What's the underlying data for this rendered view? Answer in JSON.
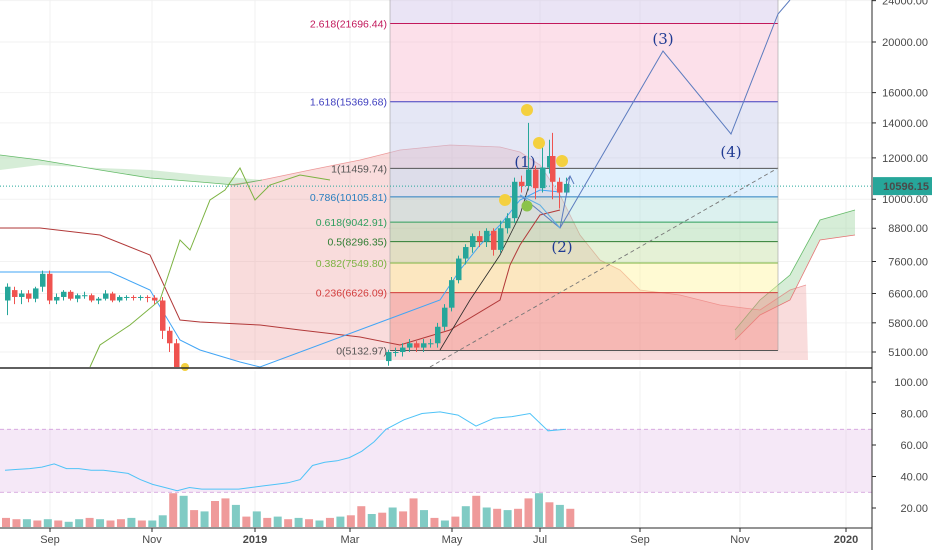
{
  "chart_data": {
    "type": "candlestick",
    "price_axis": {
      "scale": "log",
      "ticks": [
        "24000.00",
        "20000.00",
        "16000.00",
        "14000.00",
        "12000.00",
        "10000.00",
        "8800.00",
        "7600.00",
        "6600.00",
        "5800.00",
        "5100.00"
      ],
      "tick_values": [
        24000,
        20000,
        16000,
        14000,
        12000,
        10000,
        8800,
        7600,
        6600,
        5800,
        5100
      ],
      "current_price": "10596.15",
      "current_value": 10596.15
    },
    "time_axis": {
      "labels": [
        "Sep",
        "Nov",
        "2019",
        "Mar",
        "May",
        "Jul",
        "Sep",
        "Nov",
        "2020"
      ]
    },
    "fib_levels": [
      {
        "label": "0(5132.97)",
        "value": 5132.97,
        "color": "#555555"
      },
      {
        "label": "0.236(6626.09)",
        "value": 6626.09,
        "color": "#d23c3c"
      },
      {
        "label": "0.382(7549.80)",
        "value": 7549.8,
        "color": "#7cb342"
      },
      {
        "label": "0.5(8296.35)",
        "value": 8296.35,
        "color": "#2e7d32"
      },
      {
        "label": "0.618(9042.91)",
        "value": 9042.91,
        "color": "#2e9e5e"
      },
      {
        "label": "0.786(10105.81)",
        "value": 10105.81,
        "color": "#2a7fbf"
      },
      {
        "label": "1(11459.74)",
        "value": 11459.74,
        "color": "#555555"
      },
      {
        "label": "1.618(15369.68)",
        "value": 15369.68,
        "color": "#3f3fbf"
      },
      {
        "label": "2.618(21696.44)",
        "value": 21696.44,
        "color": "#c2185b"
      }
    ],
    "wave_labels": [
      "(1)",
      "(2)",
      "(3)",
      "(4)"
    ],
    "rsi_axis": {
      "ticks": [
        "100.00",
        "80.00",
        "60.00",
        "40.00",
        "20.00"
      ],
      "tick_values": [
        100,
        80,
        60,
        40,
        20
      ],
      "band": [
        30,
        70
      ]
    },
    "rsi_values": [
      44,
      44.5,
      45,
      46,
      48,
      45,
      45,
      44,
      44,
      43,
      42,
      38,
      35,
      33,
      31,
      33,
      32,
      32,
      32,
      32,
      33,
      34,
      35,
      36,
      38,
      47,
      49,
      50,
      52,
      56,
      62,
      70,
      76,
      80,
      81,
      79,
      72,
      77,
      78,
      80,
      69,
      70
    ],
    "volume_values": [
      7,
      6,
      6,
      5,
      6,
      5,
      4,
      6,
      7,
      6,
      5,
      6,
      7,
      5,
      5,
      9,
      26,
      24,
      13,
      12,
      20,
      22,
      17,
      8,
      12,
      7,
      8,
      6,
      7,
      6,
      5,
      7,
      8,
      9,
      16,
      10,
      11,
      15,
      12,
      22,
      13,
      7,
      5,
      8,
      16,
      24,
      15,
      14,
      13,
      14,
      22,
      26,
      19,
      17,
      14
    ]
  },
  "colors": {
    "up": "#26a69a",
    "down": "#ef5350",
    "tenkan": "#42a5f5",
    "kijun": "#b23a3a",
    "chikou": "#7cb342",
    "cloud_bull": "#a5d6a7",
    "cloud_bear": "#ef9a9a",
    "rsi_line": "#4fc3f7",
    "rsi_band": "#e1bee7",
    "projection": "#5c7cbf",
    "price_badge": "#26a69a"
  }
}
